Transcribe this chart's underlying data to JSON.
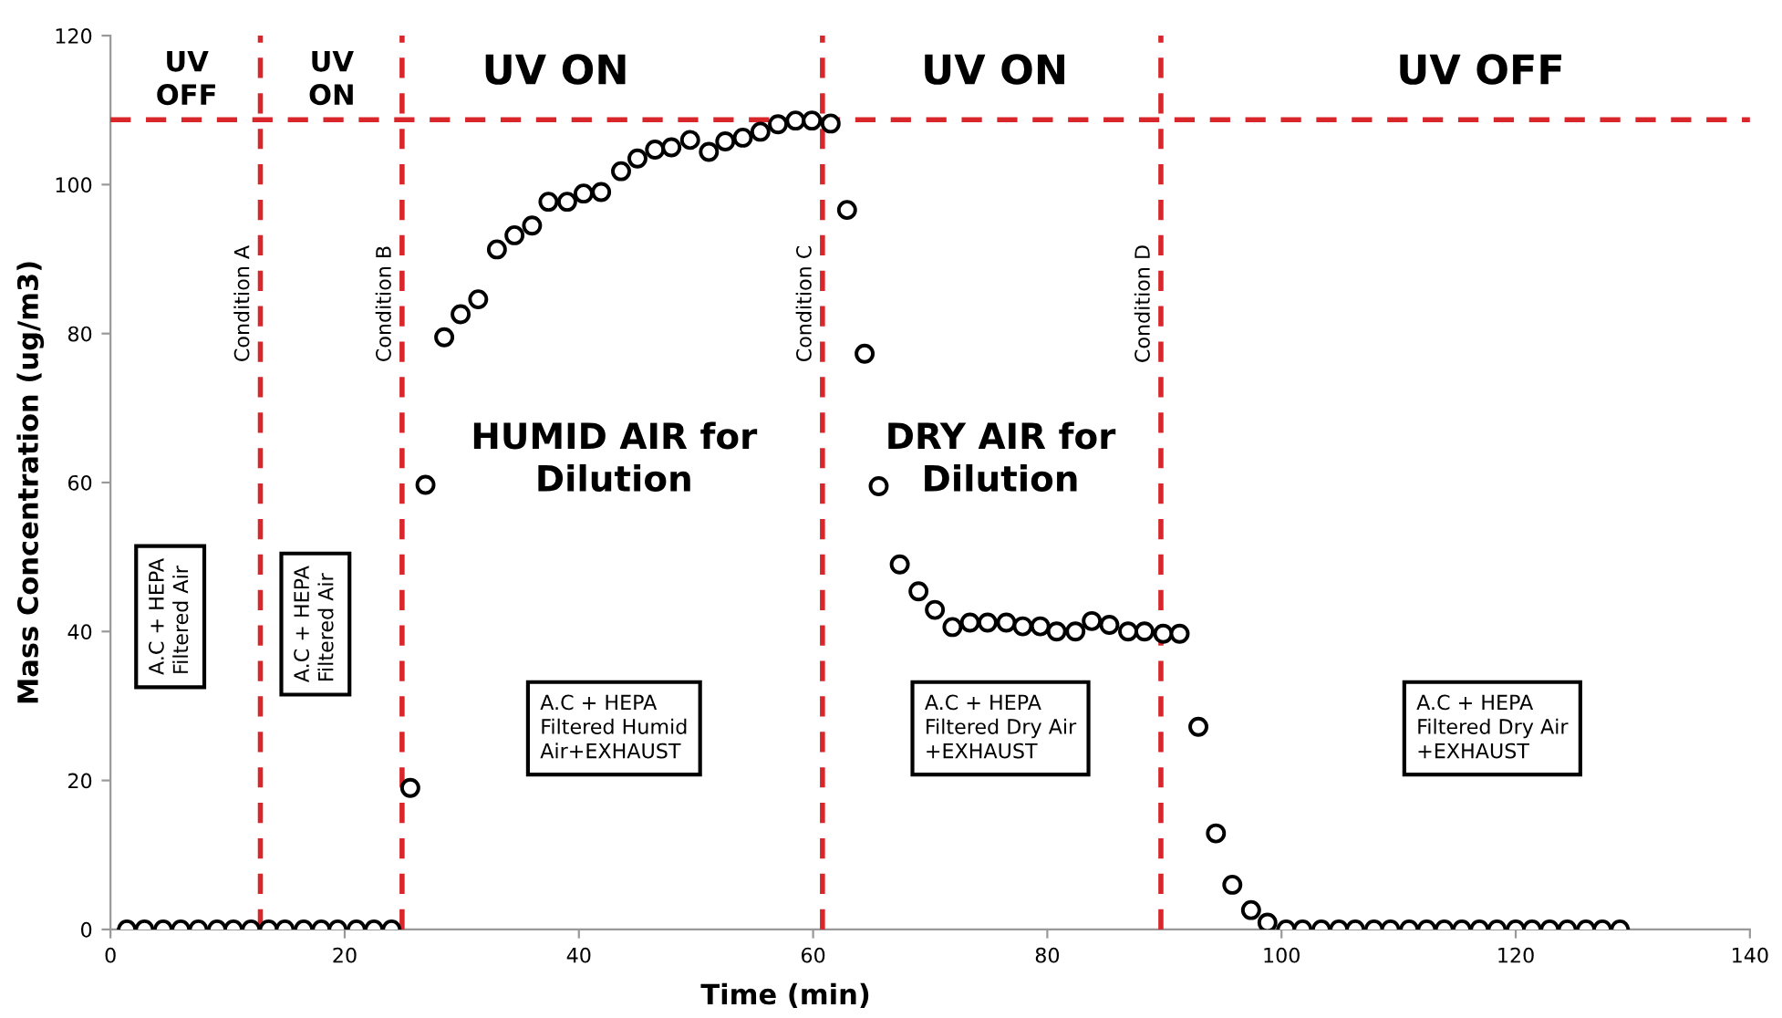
{
  "chart_data": {
    "type": "scatter",
    "xlabel": "Time (min)",
    "ylabel": "Mass Concentration (ug/m3)",
    "xlim": [
      0,
      140
    ],
    "ylim": [
      0,
      120
    ],
    "xticks": [
      0,
      20,
      40,
      60,
      80,
      100,
      120,
      140
    ],
    "yticks": [
      0,
      20,
      40,
      60,
      80,
      100,
      120
    ],
    "grid": false,
    "legend": false,
    "marker": "circle",
    "series": [
      {
        "color": "#000000",
        "x": [
          1.4,
          2.9,
          4.5,
          6.0,
          7.5,
          9.1,
          10.5,
          12.0,
          13.5,
          14.9,
          16.5,
          18.0,
          19.4,
          21.0,
          22.5,
          24.0,
          25.6,
          26.9,
          28.5,
          29.9,
          31.4,
          33.0,
          34.5,
          36.0,
          37.4,
          39.0,
          40.4,
          41.9,
          43.6,
          45.0,
          46.5,
          47.9,
          49.5,
          51.1,
          52.5,
          54.0,
          55.5,
          57.0,
          58.5,
          59.9,
          61.5,
          62.9,
          64.4,
          65.6,
          67.4,
          69.0,
          70.4,
          71.9,
          73.4,
          74.9,
          76.5,
          77.9,
          79.4,
          80.8,
          82.4,
          83.8,
          85.3,
          86.9,
          88.3,
          89.9,
          91.3,
          92.9,
          94.4,
          95.8,
          97.4,
          98.8,
          100.4,
          101.8,
          103.4,
          104.9,
          106.3,
          107.9,
          109.3,
          110.9,
          112.4,
          113.9,
          115.4,
          116.9,
          118.4,
          120.0,
          121.4,
          122.9,
          124.4,
          126.0,
          127.4,
          128.9
        ],
        "values": [
          0,
          0,
          0,
          0,
          0,
          0,
          0,
          0,
          0,
          0,
          0,
          0,
          0,
          0,
          0,
          0,
          19.0,
          59.7,
          79.5,
          82.6,
          84.6,
          91.3,
          93.2,
          94.5,
          97.7,
          97.7,
          98.8,
          99.0,
          101.8,
          103.5,
          104.7,
          105.0,
          106.0,
          104.4,
          105.8,
          106.3,
          107.1,
          108.1,
          108.6,
          108.6,
          108.2,
          96.6,
          77.3,
          59.5,
          49.0,
          45.4,
          42.9,
          40.6,
          41.2,
          41.2,
          41.2,
          40.7,
          40.7,
          40.0,
          40.0,
          41.4,
          40.9,
          40.0,
          40.0,
          39.7,
          39.7,
          27.2,
          12.9,
          6.0,
          2.6,
          0.9,
          0,
          0,
          0,
          0,
          0,
          0,
          0,
          0,
          0,
          0,
          0,
          0,
          0,
          0,
          0,
          0,
          0,
          0,
          0,
          0
        ]
      }
    ],
    "ref_lines": [
      {
        "axis": "x",
        "value": 12.8,
        "label": "Condition A",
        "color": "#d9262b",
        "line_style": "dashed"
      },
      {
        "axis": "x",
        "value": 24.9,
        "label": "Condition B",
        "color": "#d9262b",
        "line_style": "dashed"
      },
      {
        "axis": "x",
        "value": 60.8,
        "label": "Condition C",
        "color": "#d9262b",
        "line_style": "dashed"
      },
      {
        "axis": "x",
        "value": 89.7,
        "label": "Condition D",
        "color": "#d9262b",
        "line_style": "dashed"
      },
      {
        "axis": "y",
        "value": 108.7,
        "label": null,
        "color": "#d9262b",
        "line_style": "dashed"
      }
    ],
    "annotations": [
      "UV\nOFF",
      "UV\nON",
      "UV ON",
      "UV ON",
      "UV OFF",
      "HUMID AIR for\nDilution",
      "DRY AIR for\nDilution",
      "A.C + HEPA\nFiltered Air",
      "A.C + HEPA\nFiltered Air",
      "A.C + HEPA\nFiltered Humid\nAir+EXHAUST",
      "A.C + HEPA\nFiltered Dry Air\n+EXHAUST",
      "A.C + HEPA\nFiltered Dry Air\n+EXHAUST"
    ]
  }
}
